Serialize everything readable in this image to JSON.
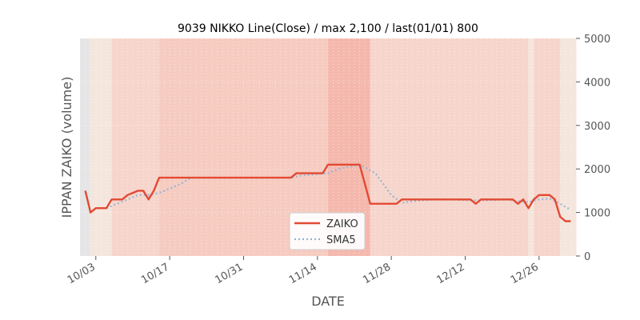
{
  "chart_data": {
    "type": "line",
    "title": "9039 NIKKO Line(Close) / max 2,100 / last(01/01) 800",
    "xlabel": "DATE",
    "ylabel": "IPPAN ZAIKO (volume)",
    "ylim": [
      0,
      5000
    ],
    "yticks": [
      0,
      1000,
      2000,
      3000,
      4000,
      5000
    ],
    "ytick_labels": [
      "0",
      "1000",
      "2000",
      "3000",
      "4000",
      "5000"
    ],
    "y_axis_side": "right",
    "xlim": [
      "2022-09-30",
      "2023-01-02"
    ],
    "xticks": [
      "2022-10-03",
      "2022-10-17",
      "2022-10-31",
      "2022-11-14",
      "2022-11-28",
      "2022-12-12",
      "2022-12-26"
    ],
    "xtick_labels": [
      "10/03",
      "10/17",
      "10/31",
      "11/14",
      "11/28",
      "12/12",
      "12/26"
    ],
    "grid": true,
    "legend_placement": "bottom-center",
    "series": [
      {
        "name": "ZAIKO",
        "style": "solid",
        "color": "#e24a33",
        "x": [
          "2022-10-01",
          "2022-10-02",
          "2022-10-03",
          "2022-10-04",
          "2022-10-05",
          "2022-10-06",
          "2022-10-07",
          "2022-10-08",
          "2022-10-09",
          "2022-10-10",
          "2022-10-11",
          "2022-10-12",
          "2022-10-13",
          "2022-10-14",
          "2022-10-15",
          "2022-10-16",
          "2022-10-17",
          "2022-10-18",
          "2022-10-19",
          "2022-10-20",
          "2022-10-21",
          "2022-10-24",
          "2022-10-25",
          "2022-10-26",
          "2022-10-27",
          "2022-10-28",
          "2022-10-31",
          "2022-11-01",
          "2022-11-02",
          "2022-11-04",
          "2022-11-07",
          "2022-11-08",
          "2022-11-09",
          "2022-11-10",
          "2022-11-11",
          "2022-11-14",
          "2022-11-15",
          "2022-11-16",
          "2022-11-17",
          "2022-11-18",
          "2022-11-21",
          "2022-11-22",
          "2022-11-24",
          "2022-11-25",
          "2022-11-28",
          "2022-11-29",
          "2022-11-30",
          "2022-12-01",
          "2022-12-02",
          "2022-12-05",
          "2022-12-06",
          "2022-12-07",
          "2022-12-08",
          "2022-12-09",
          "2022-12-12",
          "2022-12-13",
          "2022-12-14",
          "2022-12-15",
          "2022-12-16",
          "2022-12-19",
          "2022-12-20",
          "2022-12-21",
          "2022-12-22",
          "2022-12-23",
          "2022-12-24",
          "2022-12-25",
          "2022-12-26",
          "2022-12-27",
          "2022-12-28",
          "2022-12-29",
          "2022-12-30",
          "2022-12-31",
          "2023-01-01"
        ],
        "y": [
          1500,
          1000,
          1100,
          1100,
          1100,
          1300,
          1300,
          1300,
          1400,
          1450,
          1500,
          1500,
          1300,
          1500,
          1800,
          1800,
          1800,
          1800,
          1800,
          1800,
          1800,
          1800,
          1800,
          1800,
          1800,
          1800,
          1800,
          1800,
          1800,
          1800,
          1800,
          1800,
          1800,
          1900,
          1900,
          1900,
          1900,
          2100,
          2100,
          2100,
          2100,
          2100,
          1200,
          1200,
          1200,
          1200,
          1300,
          1300,
          1300,
          1300,
          1300,
          1300,
          1300,
          1300,
          1300,
          1300,
          1200,
          1300,
          1300,
          1300,
          1300,
          1300,
          1200,
          1300,
          1100,
          1300,
          1400,
          1400,
          1400,
          1300,
          900,
          800,
          800
        ]
      },
      {
        "name": "SMA5",
        "style": "dotted",
        "color": "#8eb4d6",
        "x": [
          "2022-10-05",
          "2022-10-07",
          "2022-10-09",
          "2022-10-11",
          "2022-10-13",
          "2022-10-15",
          "2022-10-17",
          "2022-10-19",
          "2022-10-21",
          "2022-10-24",
          "2022-10-28",
          "2022-10-31",
          "2022-11-04",
          "2022-11-09",
          "2022-11-11",
          "2022-11-14",
          "2022-11-16",
          "2022-11-18",
          "2022-11-22",
          "2022-11-25",
          "2022-11-28",
          "2022-11-30",
          "2022-12-02",
          "2022-12-06",
          "2022-12-09",
          "2022-12-13",
          "2022-12-16",
          "2022-12-20",
          "2022-12-22",
          "2022-12-24",
          "2022-12-26",
          "2022-12-28",
          "2022-12-30",
          "2023-01-01"
        ],
        "y": [
          1100,
          1200,
          1300,
          1400,
          1400,
          1450,
          1550,
          1650,
          1800,
          1800,
          1800,
          1800,
          1800,
          1800,
          1850,
          1880,
          1900,
          2000,
          2100,
          1900,
          1400,
          1220,
          1260,
          1300,
          1300,
          1280,
          1280,
          1300,
          1260,
          1240,
          1300,
          1320,
          1200,
          1060
        ]
      }
    ]
  },
  "colors": {
    "background_panel": "#e5e5e5",
    "band_light": "#f5e6dd",
    "band_medium": "#f6d5cc",
    "band_dark": "#f4b8ad",
    "zaiko_line": "#e24a33",
    "sma_line": "#8eb4d6"
  }
}
